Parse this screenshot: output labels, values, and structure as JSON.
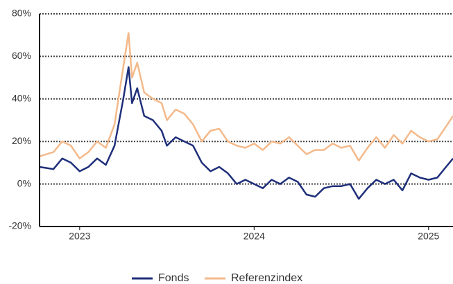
{
  "chart_data": {
    "type": "line",
    "x": [
      2022.77,
      2022.85,
      2022.9,
      2022.95,
      2023.0,
      2023.05,
      2023.1,
      2023.15,
      2023.2,
      2023.25,
      2023.28,
      2023.3,
      2023.33,
      2023.37,
      2023.42,
      2023.47,
      2023.5,
      2023.55,
      2023.6,
      2023.65,
      2023.7,
      2023.75,
      2023.8,
      2023.85,
      2023.9,
      2023.95,
      2024.0,
      2024.05,
      2024.1,
      2024.15,
      2024.2,
      2024.25,
      2024.3,
      2024.35,
      2024.4,
      2024.45,
      2024.5,
      2024.55,
      2024.6,
      2024.65,
      2024.7,
      2024.75,
      2024.8,
      2024.85,
      2024.9,
      2024.95,
      2025.0,
      2025.05,
      2025.1,
      2025.14
    ],
    "series": [
      {
        "name": "Fonds",
        "color": "#1f2f7a",
        "values": [
          8,
          7,
          12,
          10,
          6,
          8,
          12,
          9,
          18,
          40,
          55,
          38,
          45,
          32,
          30,
          25,
          18,
          22,
          20,
          18,
          10,
          6,
          8,
          5,
          0,
          2,
          0,
          -2,
          2,
          0,
          3,
          1,
          -5,
          -6,
          -2,
          -1,
          -1,
          0,
          -7,
          -2,
          2,
          0,
          2,
          -3,
          5,
          3,
          2,
          3,
          8,
          12
        ]
      },
      {
        "name": "Referenzindex",
        "color": "#f4b98a",
        "values": [
          13,
          15,
          20,
          18,
          12,
          15,
          20,
          17,
          28,
          55,
          71,
          50,
          57,
          43,
          40,
          38,
          30,
          35,
          33,
          28,
          20,
          25,
          26,
          20,
          18,
          17,
          19,
          16,
          20,
          19,
          22,
          18,
          14,
          16,
          16,
          19,
          17,
          18,
          11,
          17,
          22,
          17,
          23,
          19,
          25,
          22,
          20,
          21,
          27,
          32
        ]
      }
    ],
    "xlim": [
      2022.77,
      2025.14
    ],
    "xticks": [
      2023,
      2024,
      2025
    ],
    "ylim": [
      -20,
      80
    ],
    "yticks": [
      {
        "value": -20,
        "label": "-20%"
      },
      {
        "value": 0,
        "label": "0%"
      },
      {
        "value": 20,
        "label": "20%"
      },
      {
        "value": 40,
        "label": "40%"
      },
      {
        "value": 60,
        "label": "60%"
      },
      {
        "value": 80,
        "label": "80%"
      }
    ],
    "grid": true
  }
}
